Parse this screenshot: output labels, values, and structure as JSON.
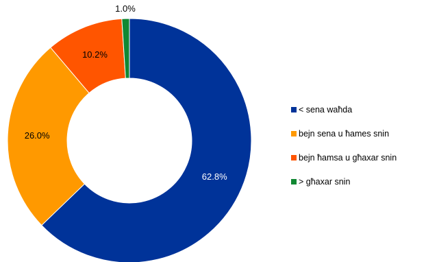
{
  "chart_data": {
    "type": "pie",
    "donut": true,
    "title": "",
    "legend_position": "right",
    "series": [
      {
        "name": "",
        "categories": [
          "< sena waħda",
          "bejn sena u ħames snin",
          "bejn ħamsa u għaxar snin",
          "> għaxar snin"
        ],
        "values": [
          62.8,
          26.0,
          10.2,
          1.0
        ],
        "labels": [
          "62.8%",
          "26.0%",
          "10.2%",
          "1.0%"
        ],
        "colors": [
          "#003399",
          "#FF9900",
          "#FF5500",
          "#118833"
        ],
        "label_colors": [
          "#ffffff",
          "#000000",
          "#000000",
          "#000000"
        ]
      }
    ]
  }
}
